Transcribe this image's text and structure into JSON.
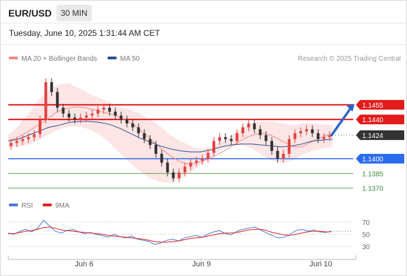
{
  "header": {
    "symbol": "EUR/USD",
    "timeframe": "30 MIN",
    "datetime": "Tuesday, June 10, 2025 1:31:44 AM CET"
  },
  "legend": {
    "ma20_label": "MA 20 + Bollinger Bands",
    "ma50_label": "MA 50",
    "credit": "Research © 2025 Trading Central",
    "rsi_label": "RSI",
    "rsi_ma_label": "9MA"
  },
  "colors": {
    "resistance": "#e31b1b",
    "support_main": "#2a6cf0",
    "support_minor": "#5aa65a",
    "current": "#333333",
    "candle_up": "#e24040",
    "candle_down": "#333333",
    "bollinger_fill": "#fbe0e0",
    "ma20": "#f08a8a",
    "ma50": "#2b4e8c",
    "arrow": "#2a66c9",
    "rsi": "#4a78d8",
    "rsi_ma": "#e02020"
  },
  "chart_data": {
    "type": "candlestick",
    "x_ticks": [
      "Jun 6",
      "Jun 9",
      "Jun 10"
    ],
    "y_range": [
      1.1362,
      1.1495
    ],
    "levels": [
      {
        "label": "1.1455",
        "value": 1.1455,
        "kind": "resistance"
      },
      {
        "label": "1.1440",
        "value": 1.144,
        "kind": "resistance"
      },
      {
        "label": "1.1424",
        "value": 1.1424,
        "kind": "current"
      },
      {
        "label": "1.1400",
        "value": 1.14,
        "kind": "support_main"
      },
      {
        "label": "1.1385",
        "value": 1.1385,
        "kind": "support_minor"
      },
      {
        "label": "1.1370",
        "value": 1.137,
        "kind": "support_minor"
      }
    ],
    "forecast": {
      "from": 1.1424,
      "to": 1.1455,
      "direction": "up"
    },
    "close_series": [
      1.1416,
      1.1418,
      1.142,
      1.1422,
      1.1425,
      1.144,
      1.1478,
      1.1468,
      1.1452,
      1.1446,
      1.1442,
      1.144,
      1.1442,
      1.1444,
      1.1446,
      1.145,
      1.1452,
      1.1448,
      1.1444,
      1.144,
      1.1436,
      1.1432,
      1.1426,
      1.142,
      1.1414,
      1.1405,
      1.1396,
      1.1386,
      1.138,
      1.1386,
      1.1392,
      1.1396,
      1.1398,
      1.14,
      1.1406,
      1.1418,
      1.1422,
      1.142,
      1.1418,
      1.1426,
      1.1432,
      1.1436,
      1.143,
      1.1424,
      1.1418,
      1.1408,
      1.14,
      1.1405,
      1.142,
      1.1426,
      1.1428,
      1.143,
      1.1426,
      1.142,
      1.1422,
      1.1424
    ],
    "ma20": [
      1.1418,
      1.1421,
      1.1425,
      1.143,
      1.1435,
      1.144,
      1.1446,
      1.145,
      1.1452,
      1.1453,
      1.1452,
      1.145,
      1.1448,
      1.1446,
      1.1444,
      1.144,
      1.1436,
      1.143,
      1.1423,
      1.1416,
      1.1409,
      1.1403,
      1.1398,
      1.1395,
      1.1395,
      1.1397,
      1.14,
      1.1404,
      1.1408,
      1.1413,
      1.1418,
      1.1422,
      1.1425,
      1.1426,
      1.1424,
      1.142,
      1.1416,
      1.1412,
      1.1412,
      1.1416,
      1.142,
      1.1423,
      1.1424
    ],
    "bollinger_upper": [
      1.1424,
      1.1434,
      1.1446,
      1.146,
      1.147,
      1.1476,
      1.1477,
      1.1472,
      1.1466,
      1.1462,
      1.1458,
      1.1452,
      1.145,
      1.1446,
      1.144,
      1.1433,
      1.1424,
      1.1418,
      1.1413,
      1.141,
      1.1412,
      1.1417,
      1.1424,
      1.143,
      1.1436,
      1.1438,
      1.1438,
      1.1436,
      1.1434,
      1.1436,
      1.1436,
      1.1435,
      1.1434
    ],
    "bollinger_lower": [
      1.1412,
      1.1412,
      1.1414,
      1.1419,
      1.1425,
      1.143,
      1.1433,
      1.1433,
      1.143,
      1.1425,
      1.1416,
      1.1406,
      1.1396,
      1.1387,
      1.138,
      1.1376,
      1.1376,
      1.138,
      1.1386,
      1.1394,
      1.1402,
      1.1409,
      1.1413,
      1.1414,
      1.1411,
      1.1404,
      1.1398,
      1.1396,
      1.1398,
      1.1404,
      1.1408,
      1.141,
      1.1412
    ],
    "ma50": [
      1.1418,
      1.142,
      1.1424,
      1.1428,
      1.1432,
      1.1434,
      1.1437,
      1.1438,
      1.1438,
      1.1437,
      1.1435,
      1.1431,
      1.1426,
      1.1421,
      1.1417,
      1.1413,
      1.141,
      1.1408,
      1.1407,
      1.1407,
      1.1409,
      1.1412,
      1.1414,
      1.1415,
      1.1415,
      1.1414,
      1.1413,
      1.1412,
      1.1413,
      1.1415,
      1.1418,
      1.1419,
      1.142
    ],
    "rsi": {
      "y_ticks": [
        30,
        50,
        70
      ],
      "y_range": [
        20,
        80
      ],
      "current": 55,
      "values": [
        52,
        50,
        55,
        58,
        54,
        60,
        73,
        64,
        55,
        52,
        56,
        58,
        54,
        51,
        53,
        50,
        48,
        45,
        50,
        46,
        44,
        47,
        42,
        40,
        38,
        33,
        36,
        40,
        42,
        39,
        44,
        46,
        48,
        45,
        50,
        54,
        56,
        51,
        49,
        55,
        58,
        60,
        62,
        57,
        52,
        48,
        44,
        45,
        50,
        56,
        58,
        55,
        57,
        54,
        53,
        55
      ],
      "ma9": [
        51,
        51,
        53,
        55,
        56,
        58,
        61,
        62,
        60,
        57,
        56,
        55,
        54,
        53,
        52,
        51,
        50,
        48,
        47,
        46,
        45,
        44,
        43,
        42,
        40,
        38,
        37,
        37,
        38,
        39,
        41,
        43,
        44,
        45,
        47,
        49,
        51,
        52,
        52,
        53,
        55,
        57,
        58,
        58,
        56,
        53,
        51,
        49,
        48,
        50,
        52,
        54,
        55,
        55,
        54,
        54
      ]
    }
  }
}
